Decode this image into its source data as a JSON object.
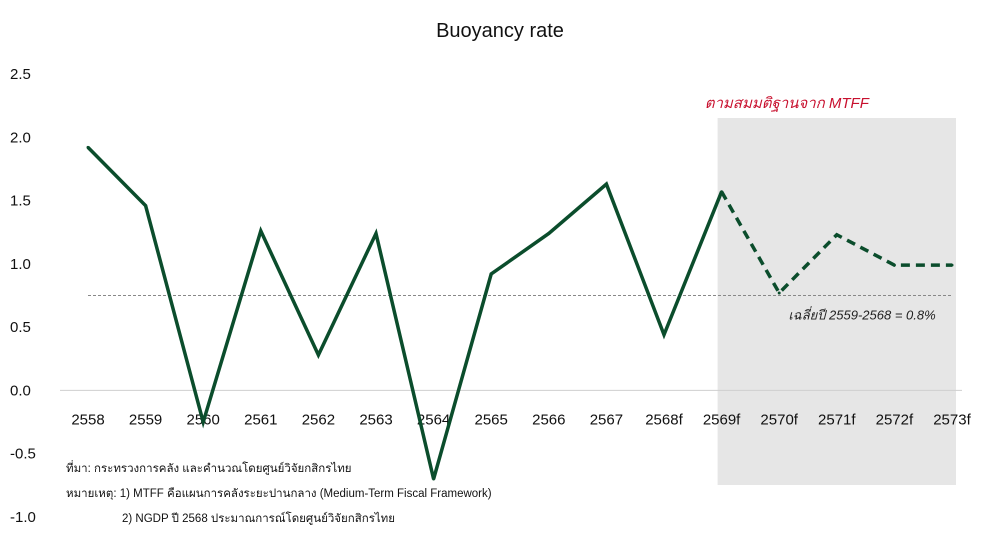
{
  "chart_data": {
    "type": "line",
    "title": "Buoyancy rate",
    "xlabel": "",
    "ylabel": "",
    "ylim": [
      -1.0,
      2.5
    ],
    "yticks": [
      "2.5",
      "2.0",
      "1.5",
      "1.0",
      "0.5",
      "0.0",
      "-0.5",
      "-1.0"
    ],
    "ytick_values": [
      2.5,
      2.0,
      1.5,
      1.0,
      0.5,
      0.0,
      -0.5,
      -1.0
    ],
    "categories": [
      "2558",
      "2559",
      "2560",
      "2561",
      "2562",
      "2563",
      "2564",
      "2565",
      "2566",
      "2567",
      "2568f",
      "2569f",
      "2570f",
      "2571f",
      "2572f",
      "2573f"
    ],
    "series": [
      {
        "values": [
          1.92,
          1.46,
          -0.25,
          1.26,
          0.28,
          1.24,
          -0.7,
          0.92,
          1.24,
          1.63,
          0.44,
          1.57,
          0.77,
          1.23,
          0.99,
          0.99
        ],
        "solid_until_index": 11,
        "color": "#0b4d2c"
      }
    ],
    "average_line": {
      "value": 0.75,
      "label": "เฉลี่ยปี 2559-2568 = 0.8%",
      "color": "#888888"
    },
    "shaded_region": {
      "from_category": "2569f",
      "to_category": "2573f",
      "label": "ตามสมมติฐานจาก MTFF",
      "label_color": "#c8102e",
      "fill": "#e6e6e6"
    },
    "grid": false,
    "legend": "none"
  },
  "notes": {
    "source": "ที่มา: กระทรวงการคลัง และคำนวณโดยศูนย์วิจัยกสิกรไทย",
    "remark1": "หมายเหตุ: 1) MTFF คือแผนการคลังระยะปานกลาง (Medium-Term Fiscal Framework)",
    "remark2": "2) NGDP ปี 2568 ประมาณการณ์โดยศูนย์วิจัยกสิกรไทย"
  }
}
